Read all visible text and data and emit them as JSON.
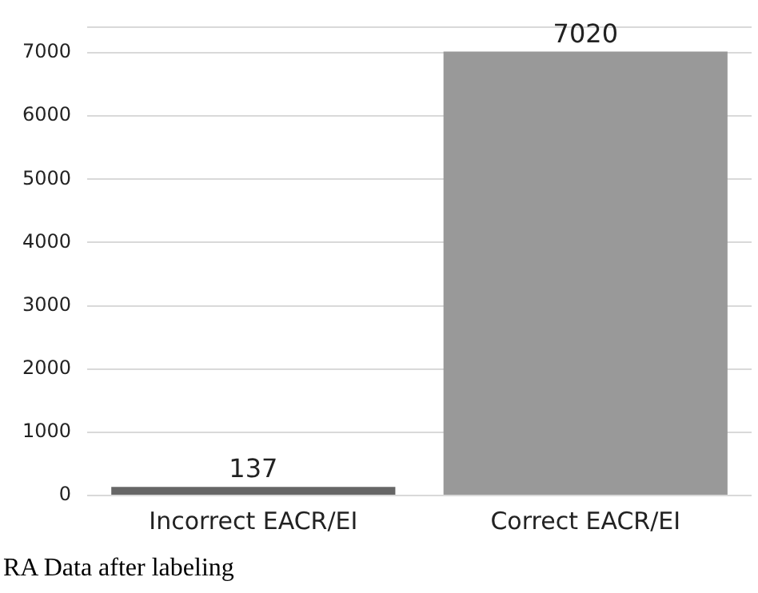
{
  "chart_data": {
    "type": "bar",
    "categories": [
      "Incorrect EACR/EI",
      "Correct EACR/EI"
    ],
    "values": [
      137,
      7020
    ],
    "colors": [
      "#666666",
      "#999999"
    ],
    "ylim": [
      0,
      7400
    ],
    "yticks": [
      0,
      1000,
      2000,
      3000,
      4000,
      5000,
      6000,
      7000,
      {
        "value": 7400,
        "label": null
      }
    ],
    "grid": "y",
    "legend": false,
    "data_labels": true,
    "annotations": [
      "RA Data after labeling"
    ]
  }
}
